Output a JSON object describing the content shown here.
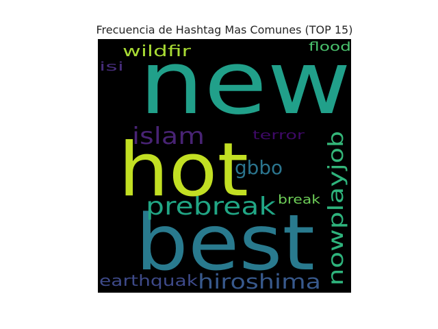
{
  "chart_data": {
    "type": "wordcloud",
    "title": "Frecuencia de Hashtag Mas Comunes (TOP 15)",
    "background": "#000000",
    "words": [
      {
        "text": "new",
        "weight": 100,
        "color": "#21a08a",
        "vertical": false
      },
      {
        "text": "hot",
        "weight": 80,
        "color": "#c2df23",
        "vertical": false
      },
      {
        "text": "best",
        "weight": 76,
        "color": "#297a8e",
        "vertical": false
      },
      {
        "text": "prebreak",
        "weight": 34,
        "color": "#21a685",
        "vertical": false
      },
      {
        "text": "hiroshima",
        "weight": 26,
        "color": "#38598c",
        "vertical": false
      },
      {
        "text": "islam",
        "weight": 30,
        "color": "#482374",
        "vertical": false
      },
      {
        "text": "nowplay",
        "weight": 28,
        "color": "#2eb37c",
        "vertical": true
      },
      {
        "text": "job",
        "weight": 27,
        "color": "#34b679",
        "vertical": true
      },
      {
        "text": "gbbo",
        "weight": 24,
        "color": "#2b758e",
        "vertical": false
      },
      {
        "text": "earthquak",
        "weight": 21,
        "color": "#3e4a89",
        "vertical": false
      },
      {
        "text": "wildfir",
        "weight": 19,
        "color": "#a8db34",
        "vertical": false
      },
      {
        "text": "terror",
        "weight": 16,
        "color": "#3d0965",
        "vertical": false
      },
      {
        "text": "flood",
        "weight": 15,
        "color": "#4ac16d",
        "vertical": false
      },
      {
        "text": "break",
        "weight": 15,
        "color": "#6ece58",
        "vertical": false
      },
      {
        "text": "isi",
        "weight": 15,
        "color": "#472d7b",
        "vertical": false
      }
    ]
  }
}
